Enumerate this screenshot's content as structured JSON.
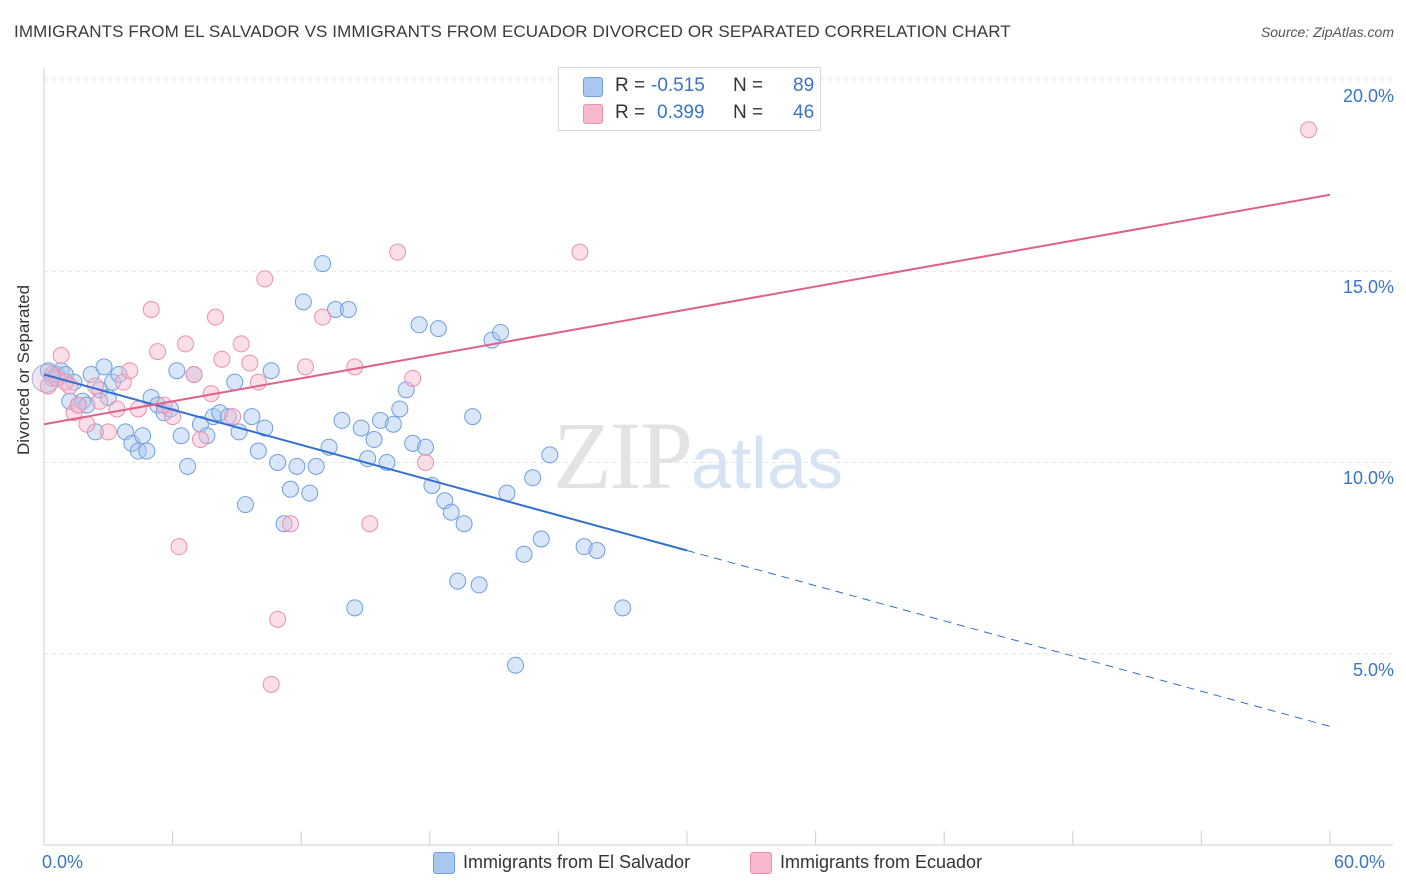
{
  "title": "IMMIGRANTS FROM EL SALVADOR VS IMMIGRANTS FROM ECUADOR DIVORCED OR SEPARATED CORRELATION CHART",
  "source": "Source: ZipAtlas.com",
  "watermark": {
    "zip": "ZIP",
    "atlas": "atlas"
  },
  "legend": {
    "rows": [
      {
        "r_label": "R =",
        "r_value": "-0.515",
        "n_label": "N =",
        "n_value": "89",
        "color": "#a9c8f0"
      },
      {
        "r_label": "R =",
        "r_value": "0.399",
        "n_label": "N =",
        "n_value": "46",
        "color": "#f6b9cc"
      }
    ]
  },
  "chart_data": {
    "type": "scatter",
    "ylabel": "Divorced or Separated",
    "xlim": [
      0,
      60
    ],
    "ylim": [
      0,
      20
    ],
    "x_tick_labels": {
      "min": "0.0%",
      "max": "60.0%"
    },
    "y_tick_labels": [
      "5.0%",
      "10.0%",
      "15.0%",
      "20.0%"
    ],
    "y_ticks": [
      5,
      10,
      15,
      20
    ],
    "grid": true,
    "series": [
      {
        "name": "Immigrants from El Salvador",
        "color": "#6f9fe0",
        "fill": "#a9c8f0",
        "trend": {
          "x0": 0,
          "y0": 12.3,
          "x1": 30,
          "y1": 7.7,
          "x_dash_end": 60,
          "y_dash_end": 3.1,
          "color": "#2e6fd1"
        },
        "points": [
          [
            0.2,
            12.4
          ],
          [
            0.4,
            12.2
          ],
          [
            0.6,
            12.3
          ],
          [
            0.8,
            12.4
          ],
          [
            1.0,
            12.3
          ],
          [
            1.2,
            11.6
          ],
          [
            1.4,
            12.1
          ],
          [
            1.6,
            11.5
          ],
          [
            1.8,
            11.6
          ],
          [
            2.0,
            11.5
          ],
          [
            2.2,
            12.3
          ],
          [
            2.4,
            10.8
          ],
          [
            2.6,
            11.9
          ],
          [
            2.8,
            12.5
          ],
          [
            3.0,
            11.7
          ],
          [
            3.2,
            12.1
          ],
          [
            3.5,
            12.3
          ],
          [
            3.8,
            10.8
          ],
          [
            4.1,
            10.5
          ],
          [
            4.4,
            10.3
          ],
          [
            4.6,
            10.7
          ],
          [
            4.8,
            10.3
          ],
          [
            5.0,
            11.7
          ],
          [
            5.3,
            11.5
          ],
          [
            5.6,
            11.3
          ],
          [
            5.9,
            11.4
          ],
          [
            6.2,
            12.4
          ],
          [
            6.4,
            10.7
          ],
          [
            6.7,
            9.9
          ],
          [
            7.0,
            12.3
          ],
          [
            7.3,
            11.0
          ],
          [
            7.6,
            10.7
          ],
          [
            7.9,
            11.2
          ],
          [
            8.2,
            11.3
          ],
          [
            8.6,
            11.2
          ],
          [
            8.9,
            12.1
          ],
          [
            9.1,
            10.8
          ],
          [
            9.4,
            8.9
          ],
          [
            9.7,
            11.2
          ],
          [
            10.0,
            10.3
          ],
          [
            10.3,
            10.9
          ],
          [
            10.6,
            12.4
          ],
          [
            10.9,
            10.0
          ],
          [
            11.2,
            8.4
          ],
          [
            11.5,
            9.3
          ],
          [
            11.8,
            9.9
          ],
          [
            12.1,
            14.2
          ],
          [
            12.4,
            9.2
          ],
          [
            12.7,
            9.9
          ],
          [
            13.0,
            15.2
          ],
          [
            13.3,
            10.4
          ],
          [
            13.6,
            14.0
          ],
          [
            13.9,
            11.1
          ],
          [
            14.2,
            14.0
          ],
          [
            14.5,
            6.2
          ],
          [
            14.8,
            10.9
          ],
          [
            15.1,
            10.1
          ],
          [
            15.4,
            10.6
          ],
          [
            15.7,
            11.1
          ],
          [
            16.0,
            10.0
          ],
          [
            16.3,
            11.0
          ],
          [
            16.6,
            11.4
          ],
          [
            16.9,
            11.9
          ],
          [
            17.2,
            10.5
          ],
          [
            17.5,
            13.6
          ],
          [
            17.8,
            10.4
          ],
          [
            18.1,
            9.4
          ],
          [
            18.4,
            13.5
          ],
          [
            18.7,
            9.0
          ],
          [
            19.0,
            8.7
          ],
          [
            19.3,
            6.9
          ],
          [
            19.6,
            8.4
          ],
          [
            20.0,
            11.2
          ],
          [
            20.3,
            6.8
          ],
          [
            20.9,
            13.2
          ],
          [
            21.3,
            13.4
          ],
          [
            21.6,
            9.2
          ],
          [
            22.0,
            4.7
          ],
          [
            22.4,
            7.6
          ],
          [
            22.8,
            9.6
          ],
          [
            23.2,
            8.0
          ],
          [
            23.6,
            10.2
          ],
          [
            25.2,
            7.8
          ],
          [
            25.8,
            7.7
          ],
          [
            27.0,
            6.2
          ]
        ]
      },
      {
        "name": "Immigrants from Ecuador",
        "color": "#ee8fad",
        "fill": "#f6b9cc",
        "trend": {
          "x0": 0,
          "y0": 11.0,
          "x1": 60,
          "y1": 17.0,
          "color": "#e0608c"
        },
        "points": [
          [
            0.2,
            12.0
          ],
          [
            0.4,
            12.3
          ],
          [
            0.6,
            12.2
          ],
          [
            0.8,
            12.8
          ],
          [
            1.0,
            12.1
          ],
          [
            1.2,
            12.0
          ],
          [
            1.4,
            11.3
          ],
          [
            1.6,
            11.5
          ],
          [
            2.0,
            11.0
          ],
          [
            2.4,
            12.0
          ],
          [
            2.6,
            11.6
          ],
          [
            3.0,
            10.8
          ],
          [
            3.4,
            11.4
          ],
          [
            3.7,
            12.1
          ],
          [
            4.0,
            12.4
          ],
          [
            4.4,
            11.4
          ],
          [
            5.0,
            14.0
          ],
          [
            5.3,
            12.9
          ],
          [
            5.6,
            11.5
          ],
          [
            6.0,
            11.2
          ],
          [
            6.3,
            7.8
          ],
          [
            6.6,
            13.1
          ],
          [
            7.0,
            12.3
          ],
          [
            7.3,
            10.6
          ],
          [
            7.8,
            11.8
          ],
          [
            8.0,
            13.8
          ],
          [
            8.3,
            12.7
          ],
          [
            8.8,
            11.2
          ],
          [
            9.2,
            13.1
          ],
          [
            9.6,
            12.6
          ],
          [
            10.0,
            12.1
          ],
          [
            10.3,
            14.8
          ],
          [
            10.6,
            4.2
          ],
          [
            10.9,
            5.9
          ],
          [
            11.5,
            8.4
          ],
          [
            12.2,
            12.5
          ],
          [
            13.0,
            13.8
          ],
          [
            14.5,
            12.5
          ],
          [
            15.2,
            8.4
          ],
          [
            16.5,
            15.5
          ],
          [
            17.2,
            12.2
          ],
          [
            17.8,
            10.0
          ],
          [
            25.0,
            15.5
          ],
          [
            59.0,
            18.7
          ]
        ]
      }
    ]
  }
}
